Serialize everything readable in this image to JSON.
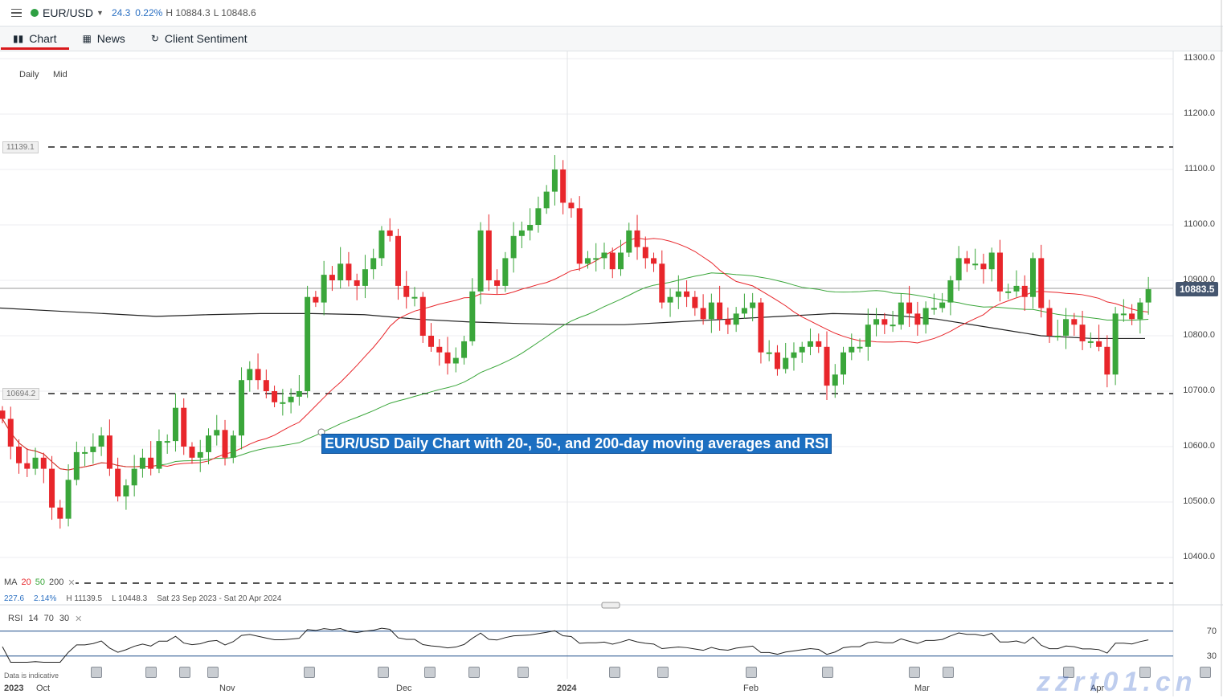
{
  "header": {
    "symbol": "EUR/USD",
    "change": "24.3",
    "change_pct": "0.22%",
    "high": "H 10884.3",
    "low": "L 10848.6",
    "status_color": "#2ea043"
  },
  "tabs": [
    {
      "label": "Chart",
      "icon": "candles-icon",
      "active": true
    },
    {
      "label": "News",
      "icon": "newspaper-icon"
    },
    {
      "label": "Client Sentiment",
      "icon": "refresh-icon"
    }
  ],
  "chart_options": {
    "interval": "Daily",
    "price_type": "Mid"
  },
  "price_axis": [
    "11300.0",
    "11200.0",
    "11100.0",
    "11000.0",
    "10900.0",
    "10800.0",
    "10700.0",
    "10600.0",
    "10500.0",
    "10400.0"
  ],
  "levels": {
    "upper": "11139.1",
    "lower": "10694.2",
    "current": "10883.5"
  },
  "annotation": "EUR/USD Daily Chart with 20-, 50-, and 200-day moving averages and RSI",
  "ma_legend": {
    "label": "MA",
    "p1": "20",
    "p2": "50",
    "p3": "200",
    "colors": [
      "#e8262b",
      "#3aa63a",
      "#222222"
    ]
  },
  "range_info": {
    "change": "227.6",
    "change_pct": "2.14%",
    "high": "H 11139.5",
    "low": "L 10448.3",
    "period": "Sat 23 Sep 2023 - Sat 20 Apr 2024"
  },
  "rsi_legend": {
    "label": "RSI",
    "period": "14",
    "upper": "70",
    "lower": "30"
  },
  "rsi_axis": [
    "70",
    "30"
  ],
  "footer_note": "Data is indicative",
  "time_axis": [
    "2023",
    "Oct",
    "Nov",
    "Dec",
    "2024",
    "Feb",
    "Mar",
    "Apr"
  ],
  "watermark": "zzrt01.cn",
  "chart_data": {
    "type": "candlestick",
    "colors": {
      "up": "#3aa63a",
      "down": "#e8262b"
    },
    "closes": [
      10650,
      10600,
      10570,
      10560,
      10580,
      10560,
      10490,
      10470,
      10540,
      10590,
      10590,
      10600,
      10620,
      10560,
      10510,
      10530,
      10560,
      10580,
      10560,
      10610,
      10610,
      10670,
      10600,
      10580,
      10590,
      10620,
      10630,
      10580,
      10620,
      10720,
      10740,
      10720,
      10700,
      10680,
      10680,
      10690,
      10700,
      10870,
      10860,
      10910,
      10900,
      10930,
      10900,
      10890,
      10920,
      10940,
      10990,
      10980,
      10890,
      10870,
      10870,
      10800,
      10780,
      10770,
      10750,
      10760,
      10790,
      10880,
      10990,
      10900,
      10890,
      10940,
      10980,
      10990,
      11000,
      11030,
      11060,
      11100,
      11040,
      11030,
      10930,
      10940,
      10940,
      10950,
      10920,
      10950,
      10990,
      10960,
      10940,
      10930,
      10860,
      10870,
      10880,
      10870,
      10850,
      10830,
      10860,
      10830,
      10820,
      10840,
      10850,
      10860,
      10770,
      10770,
      10740,
      10760,
      10770,
      10780,
      10790,
      10780,
      10710,
      10730,
      10770,
      10780,
      10780,
      10820,
      10830,
      10820,
      10820,
      10860,
      10840,
      10820,
      10850,
      10850,
      10860,
      10900,
      10940,
      10930,
      10930,
      10920,
      10950,
      10880,
      10880,
      10890,
      10870,
      10940,
      10850,
      10800,
      10800,
      10830,
      10820,
      10790,
      10790,
      10780,
      10730,
      10840,
      10840,
      10830,
      10860,
      10884
    ],
    "ma200": [
      10850,
      10845,
      10840,
      10835,
      10838,
      10840,
      10840,
      10838,
      10830,
      10825,
      10822,
      10820,
      10820,
      10825,
      10830,
      10835,
      10840,
      10838,
      10830,
      10815,
      10800,
      10795,
      10795
    ]
  }
}
